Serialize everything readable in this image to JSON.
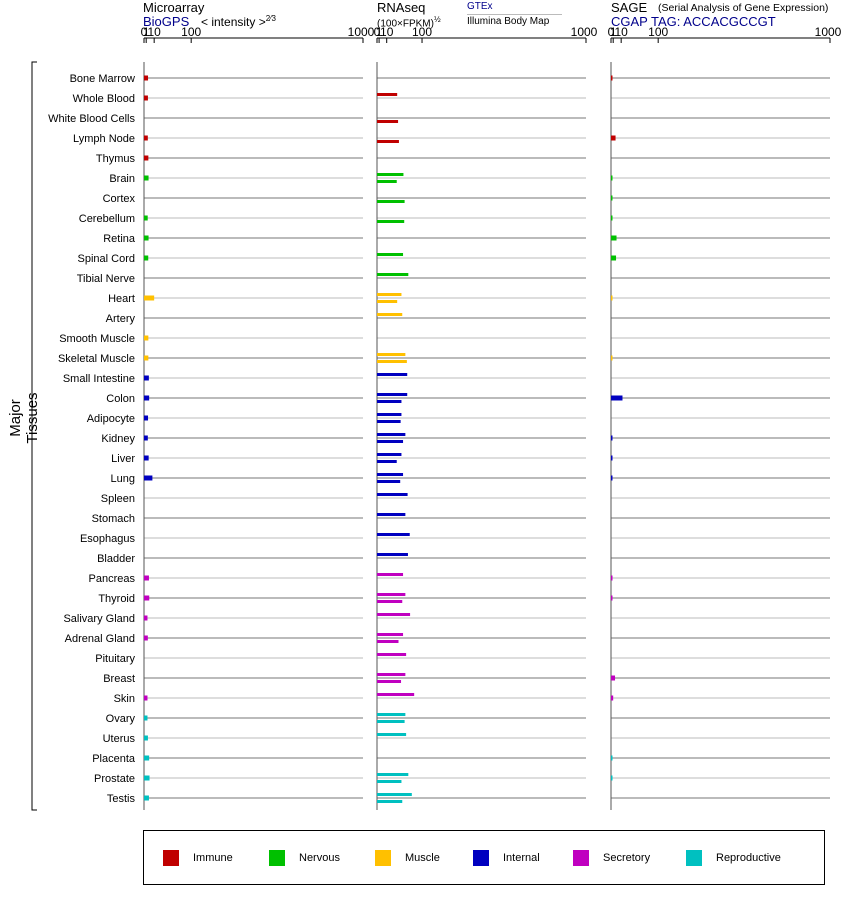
{
  "panels": [
    {
      "title": "Microarray",
      "source": "BioGPS",
      "extra": "< intensity >",
      "extra_sup": "2⁄3"
    },
    {
      "title": "RNAseq",
      "source": "GTEx",
      "extra": "(100×FPKM)",
      "extra_sup": "½",
      "extra2": "Illumina Body Map"
    },
    {
      "title": "SAGE",
      "source": "CGAP TAG: ACCACGCCGT",
      "extra": "(Serial Analysis of Gene Expression)"
    }
  ],
  "ylabel": "Major Tissues",
  "legend": [
    {
      "label": "Immune",
      "color": "#c00000"
    },
    {
      "label": "Nervous",
      "color": "#00c000"
    },
    {
      "label": "Muscle",
      "color": "#ffc000"
    },
    {
      "label": "Internal",
      "color": "#0000c0"
    },
    {
      "label": "Secretory",
      "color": "#c000c0"
    },
    {
      "label": "Reproductive",
      "color": "#00c0c0"
    }
  ],
  "chart_data": {
    "type": "bar",
    "xscale": "power 2/3",
    "xlim": [
      0,
      1000
    ],
    "xticks": [
      "0",
      "1",
      "10",
      "100",
      "1000"
    ],
    "categories": [
      "Bone Marrow",
      "Whole Blood",
      "White Blood Cells",
      "Lymph Node",
      "Thymus",
      "Brain",
      "Cortex",
      "Cerebellum",
      "Retina",
      "Spinal Cord",
      "Tibial Nerve",
      "Heart",
      "Artery",
      "Smooth Muscle",
      "Skeletal Muscle",
      "Small Intestine",
      "Colon",
      "Adipocyte",
      "Kidney",
      "Liver",
      "Lung",
      "Spleen",
      "Stomach",
      "Esophagus",
      "Bladder",
      "Pancreas",
      "Thyroid",
      "Salivary Gland",
      "Adrenal Gland",
      "Pituitary",
      "Breast",
      "Skin",
      "Ovary",
      "Uterus",
      "Placenta",
      "Prostate",
      "Testis"
    ],
    "groups": [
      "Immune",
      "Immune",
      "Immune",
      "Immune",
      "Immune",
      "Nervous",
      "Nervous",
      "Nervous",
      "Nervous",
      "Nervous",
      "Nervous",
      "Muscle",
      "Muscle",
      "Muscle",
      "Muscle",
      "Internal",
      "Internal",
      "Internal",
      "Internal",
      "Internal",
      "Internal",
      "Internal",
      "Internal",
      "Internal",
      "Internal",
      "Secretory",
      "Secretory",
      "Secretory",
      "Secretory",
      "Secretory",
      "Secretory",
      "Secretory",
      "Reproductive",
      "Reproductive",
      "Reproductive",
      "Reproductive",
      "Reproductive"
    ],
    "microarray": [
      2.5,
      2.4,
      null,
      2.3,
      2.8,
      3.0,
      null,
      2.2,
      3.0,
      2.7,
      null,
      10.0,
      null,
      2.8,
      2.8,
      3.3,
      3.6,
      2.5,
      2.3,
      3.1,
      7.5,
      null,
      null,
      null,
      null,
      3.4,
      3.7,
      2.0,
      2.3,
      null,
      null,
      2.0,
      2.0,
      2.4,
      3.6,
      4.0,
      3.4
    ],
    "rnaseq_gtex": [
      null,
      30,
      null,
      null,
      null,
      45,
      null,
      null,
      null,
      44,
      58,
      40,
      42,
      null,
      50,
      55,
      55,
      40,
      50,
      40,
      44,
      56,
      50,
      62,
      57,
      44,
      50,
      63,
      44,
      52,
      50,
      75,
      50,
      52,
      null,
      58,
      68
    ],
    "rnaseq_ibm": [
      null,
      null,
      32,
      34,
      null,
      29,
      48,
      47,
      null,
      null,
      null,
      30,
      null,
      null,
      54,
      null,
      40,
      38,
      44,
      29,
      37,
      null,
      null,
      null,
      null,
      null,
      42,
      null,
      33,
      null,
      39,
      null,
      48,
      null,
      null,
      40,
      42
    ],
    "sage": [
      0.01,
      null,
      null,
      3.0,
      null,
      0.01,
      0.01,
      0.01,
      4.0,
      3.5,
      null,
      0.005,
      null,
      null,
      0.005,
      null,
      12,
      null,
      0.01,
      0.01,
      0.01,
      null,
      null,
      null,
      null,
      0.01,
      0.01,
      null,
      null,
      null,
      2.5,
      1.0,
      null,
      null,
      0.005,
      0.005,
      null
    ]
  }
}
